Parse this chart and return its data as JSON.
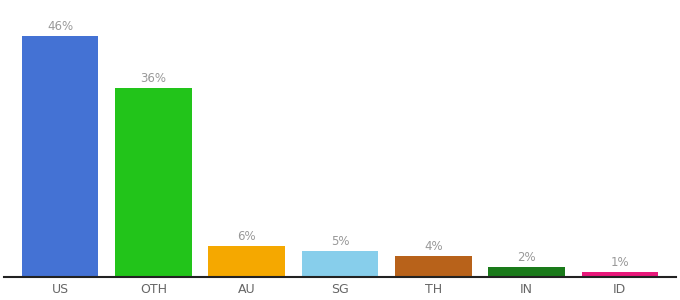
{
  "categories": [
    "US",
    "OTH",
    "AU",
    "SG",
    "TH",
    "IN",
    "ID"
  ],
  "values": [
    46,
    36,
    6,
    5,
    4,
    2,
    1
  ],
  "bar_colors": [
    "#4472d4",
    "#22c41a",
    "#f5a800",
    "#87ceeb",
    "#b8621a",
    "#1a7a1a",
    "#e8187a"
  ],
  "labels": [
    "46%",
    "36%",
    "6%",
    "5%",
    "4%",
    "2%",
    "1%"
  ],
  "background_color": "#ffffff",
  "label_fontsize": 8.5,
  "tick_fontsize": 9,
  "bar_width": 0.82,
  "ylim": [
    0,
    52
  ],
  "label_color": "#999999",
  "tick_color": "#666666"
}
